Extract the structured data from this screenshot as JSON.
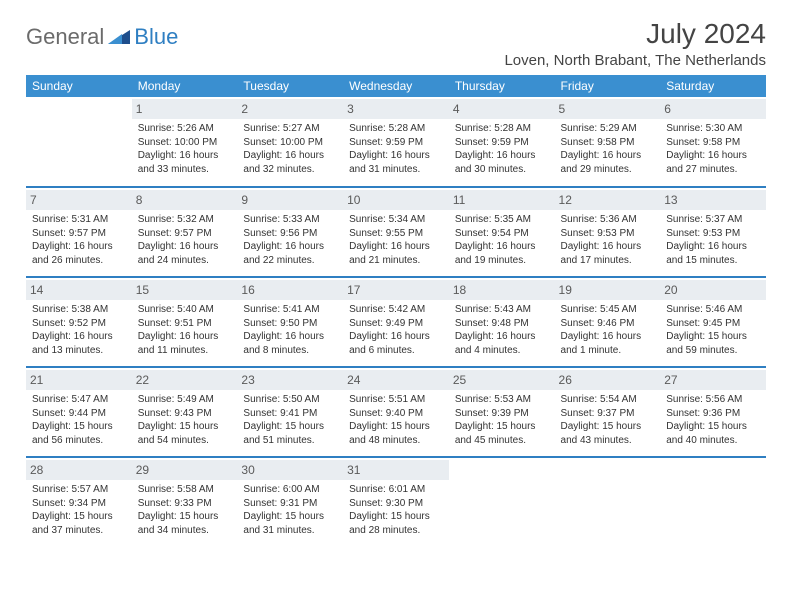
{
  "logo": {
    "brand1": "General",
    "brand2": "Blue"
  },
  "header": {
    "monthTitle": "July 2024",
    "location": "Loven, North Brabant, The Netherlands"
  },
  "colors": {
    "headerBg": "#3a8fd0",
    "headerText": "#ffffff",
    "rowBorder": "#2f7fc2",
    "dayBarBg": "#e9edf1",
    "bodyText": "#333333"
  },
  "dayNames": [
    "Sunday",
    "Monday",
    "Tuesday",
    "Wednesday",
    "Thursday",
    "Friday",
    "Saturday"
  ],
  "weeks": [
    [
      null,
      {
        "n": "1",
        "sunrise": "5:26 AM",
        "sunset": "10:00 PM",
        "daylight": "16 hours and 33 minutes."
      },
      {
        "n": "2",
        "sunrise": "5:27 AM",
        "sunset": "10:00 PM",
        "daylight": "16 hours and 32 minutes."
      },
      {
        "n": "3",
        "sunrise": "5:28 AM",
        "sunset": "9:59 PM",
        "daylight": "16 hours and 31 minutes."
      },
      {
        "n": "4",
        "sunrise": "5:28 AM",
        "sunset": "9:59 PM",
        "daylight": "16 hours and 30 minutes."
      },
      {
        "n": "5",
        "sunrise": "5:29 AM",
        "sunset": "9:58 PM",
        "daylight": "16 hours and 29 minutes."
      },
      {
        "n": "6",
        "sunrise": "5:30 AM",
        "sunset": "9:58 PM",
        "daylight": "16 hours and 27 minutes."
      }
    ],
    [
      {
        "n": "7",
        "sunrise": "5:31 AM",
        "sunset": "9:57 PM",
        "daylight": "16 hours and 26 minutes."
      },
      {
        "n": "8",
        "sunrise": "5:32 AM",
        "sunset": "9:57 PM",
        "daylight": "16 hours and 24 minutes."
      },
      {
        "n": "9",
        "sunrise": "5:33 AM",
        "sunset": "9:56 PM",
        "daylight": "16 hours and 22 minutes."
      },
      {
        "n": "10",
        "sunrise": "5:34 AM",
        "sunset": "9:55 PM",
        "daylight": "16 hours and 21 minutes."
      },
      {
        "n": "11",
        "sunrise": "5:35 AM",
        "sunset": "9:54 PM",
        "daylight": "16 hours and 19 minutes."
      },
      {
        "n": "12",
        "sunrise": "5:36 AM",
        "sunset": "9:53 PM",
        "daylight": "16 hours and 17 minutes."
      },
      {
        "n": "13",
        "sunrise": "5:37 AM",
        "sunset": "9:53 PM",
        "daylight": "16 hours and 15 minutes."
      }
    ],
    [
      {
        "n": "14",
        "sunrise": "5:38 AM",
        "sunset": "9:52 PM",
        "daylight": "16 hours and 13 minutes."
      },
      {
        "n": "15",
        "sunrise": "5:40 AM",
        "sunset": "9:51 PM",
        "daylight": "16 hours and 11 minutes."
      },
      {
        "n": "16",
        "sunrise": "5:41 AM",
        "sunset": "9:50 PM",
        "daylight": "16 hours and 8 minutes."
      },
      {
        "n": "17",
        "sunrise": "5:42 AM",
        "sunset": "9:49 PM",
        "daylight": "16 hours and 6 minutes."
      },
      {
        "n": "18",
        "sunrise": "5:43 AM",
        "sunset": "9:48 PM",
        "daylight": "16 hours and 4 minutes."
      },
      {
        "n": "19",
        "sunrise": "5:45 AM",
        "sunset": "9:46 PM",
        "daylight": "16 hours and 1 minute."
      },
      {
        "n": "20",
        "sunrise": "5:46 AM",
        "sunset": "9:45 PM",
        "daylight": "15 hours and 59 minutes."
      }
    ],
    [
      {
        "n": "21",
        "sunrise": "5:47 AM",
        "sunset": "9:44 PM",
        "daylight": "15 hours and 56 minutes."
      },
      {
        "n": "22",
        "sunrise": "5:49 AM",
        "sunset": "9:43 PM",
        "daylight": "15 hours and 54 minutes."
      },
      {
        "n": "23",
        "sunrise": "5:50 AM",
        "sunset": "9:41 PM",
        "daylight": "15 hours and 51 minutes."
      },
      {
        "n": "24",
        "sunrise": "5:51 AM",
        "sunset": "9:40 PM",
        "daylight": "15 hours and 48 minutes."
      },
      {
        "n": "25",
        "sunrise": "5:53 AM",
        "sunset": "9:39 PM",
        "daylight": "15 hours and 45 minutes."
      },
      {
        "n": "26",
        "sunrise": "5:54 AM",
        "sunset": "9:37 PM",
        "daylight": "15 hours and 43 minutes."
      },
      {
        "n": "27",
        "sunrise": "5:56 AM",
        "sunset": "9:36 PM",
        "daylight": "15 hours and 40 minutes."
      }
    ],
    [
      {
        "n": "28",
        "sunrise": "5:57 AM",
        "sunset": "9:34 PM",
        "daylight": "15 hours and 37 minutes."
      },
      {
        "n": "29",
        "sunrise": "5:58 AM",
        "sunset": "9:33 PM",
        "daylight": "15 hours and 34 minutes."
      },
      {
        "n": "30",
        "sunrise": "6:00 AM",
        "sunset": "9:31 PM",
        "daylight": "15 hours and 31 minutes."
      },
      {
        "n": "31",
        "sunrise": "6:01 AM",
        "sunset": "9:30 PM",
        "daylight": "15 hours and 28 minutes."
      },
      null,
      null,
      null
    ]
  ],
  "labels": {
    "sunrisePrefix": "Sunrise: ",
    "sunsetPrefix": "Sunset: ",
    "daylightPrefix": "Daylight: "
  }
}
